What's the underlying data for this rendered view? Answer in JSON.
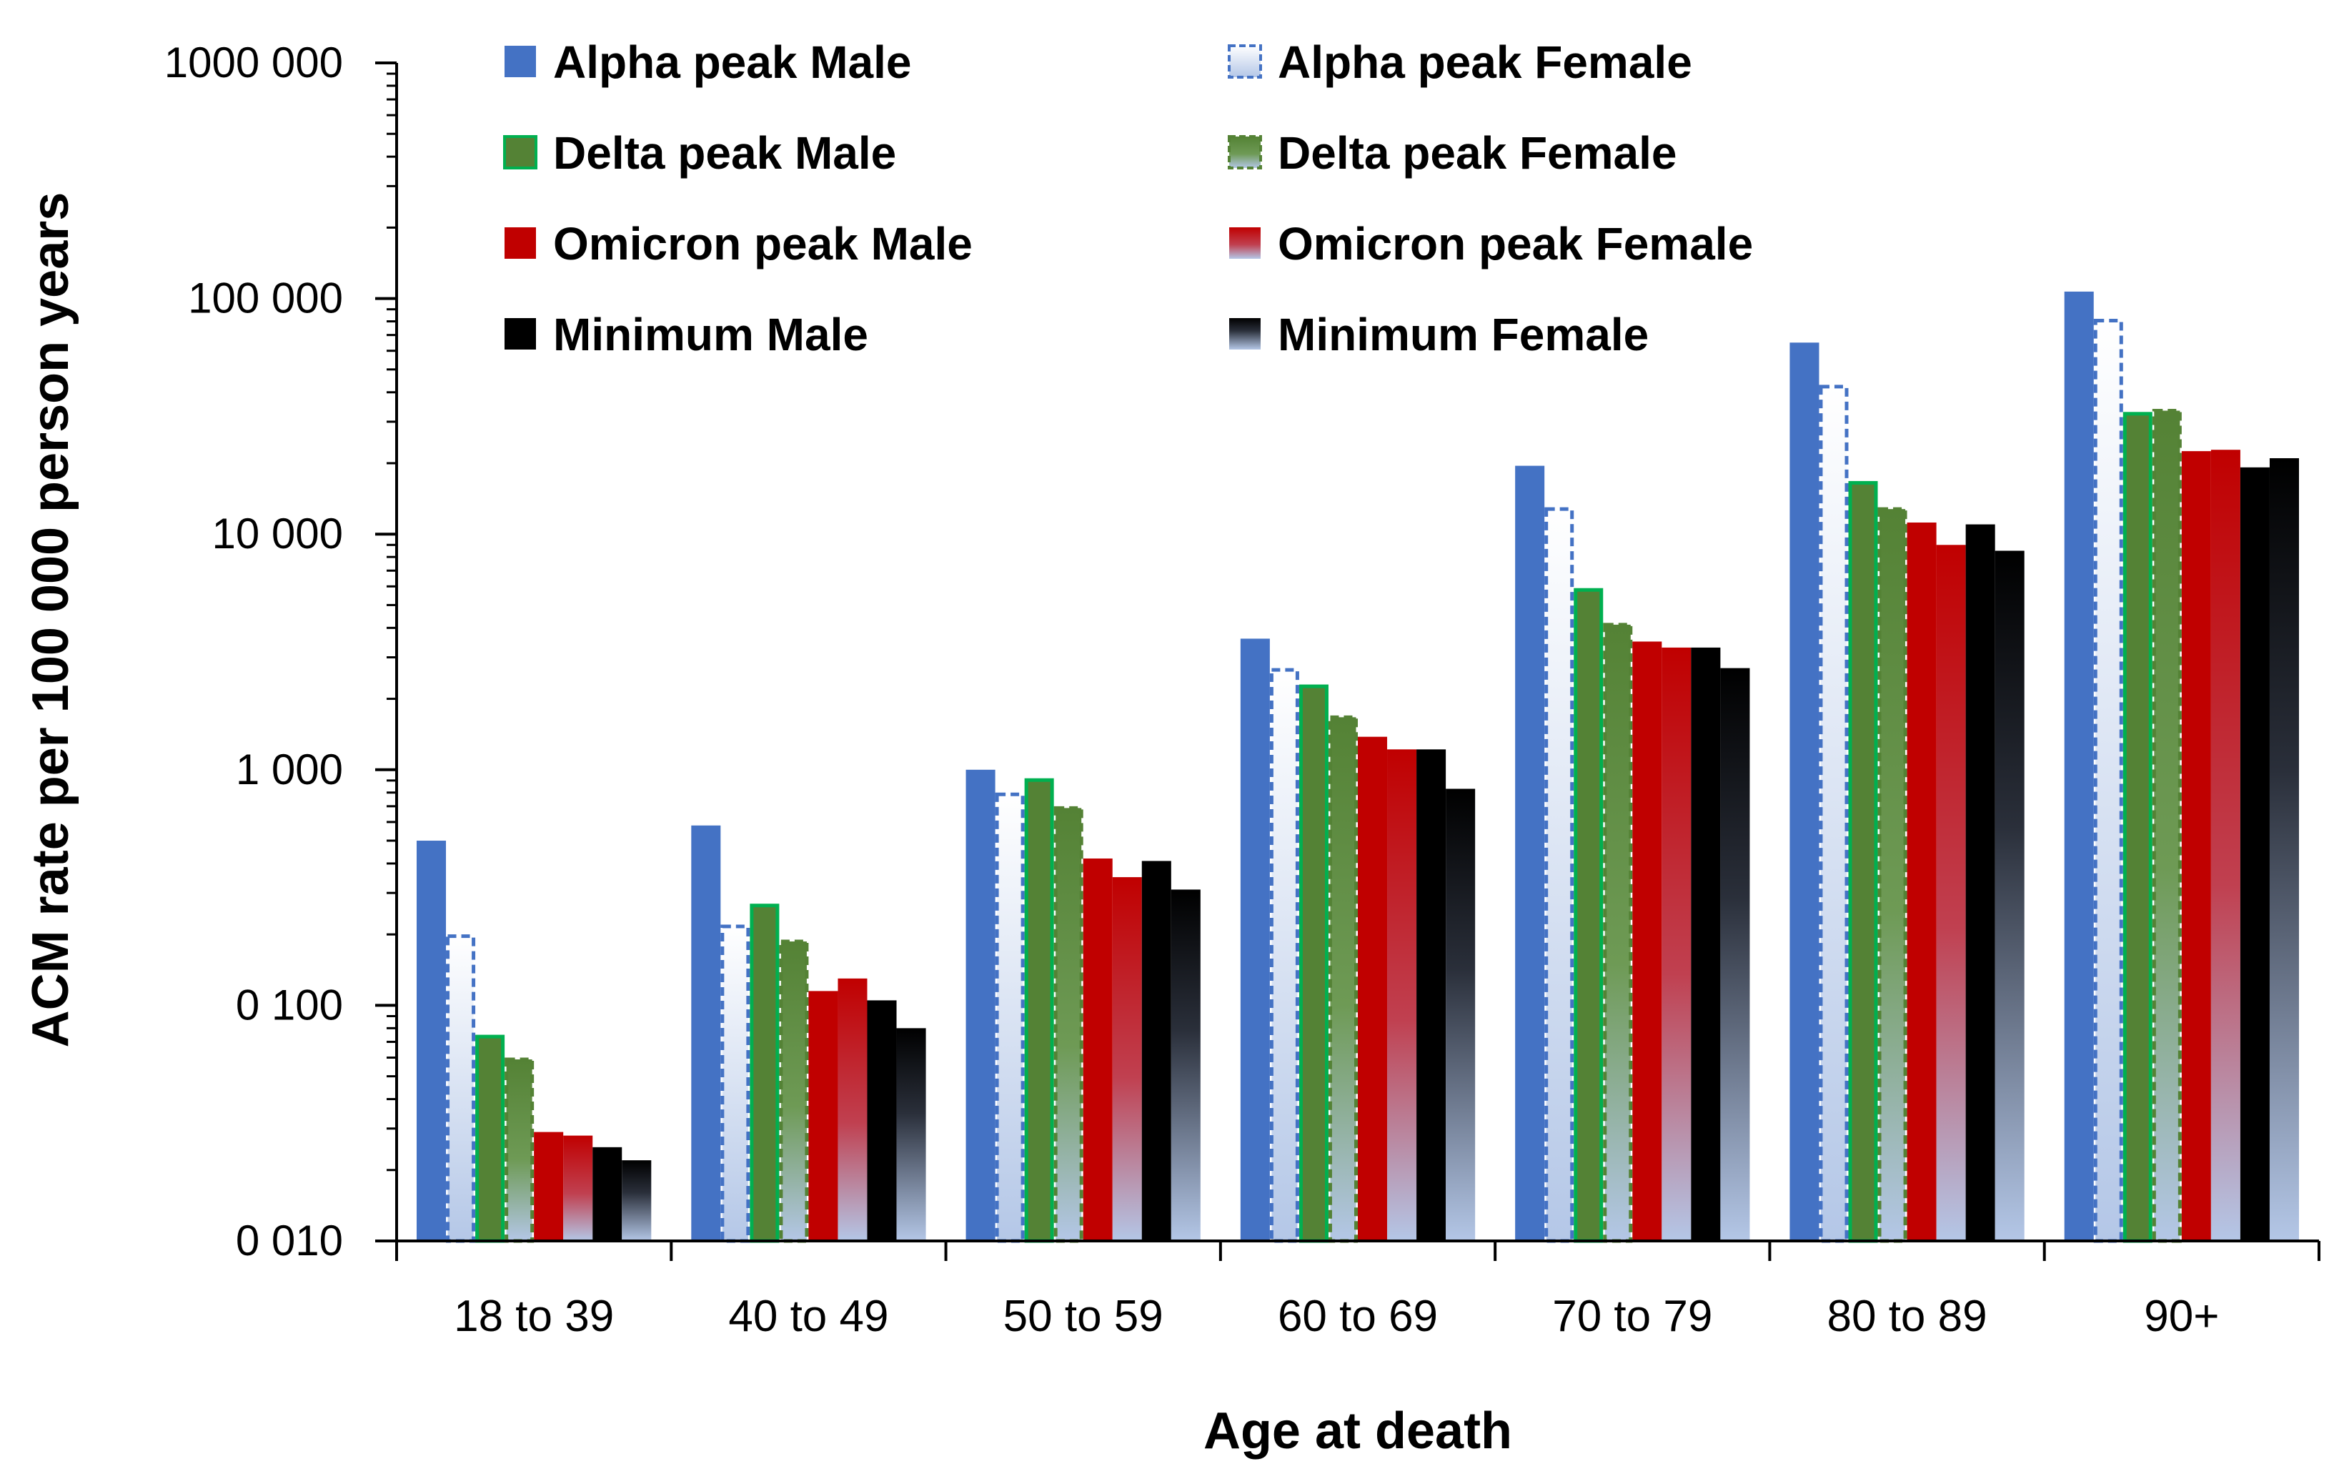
{
  "chart_data": {
    "type": "bar",
    "title": "",
    "xlabel": "Age at death",
    "ylabel": "ACM rate per 100 000 person years",
    "yscale": "log",
    "ylim": [
      0.01,
      1000
    ],
    "yticks": [
      0.01,
      0.1,
      1,
      10,
      100,
      1000
    ],
    "ytick_labels": [
      "0 010",
      "0 100",
      "1 000",
      "10 000",
      "100 000",
      "1000 000"
    ],
    "categories": [
      "18 to 39",
      "40 to 49",
      "50 to 59",
      "60 to 69",
      "70 to 79",
      "80 to 89",
      "90+"
    ],
    "legend_position": "top",
    "series": [
      {
        "name": "Alpha peak Male",
        "color": "#4472C4",
        "style": "solid",
        "values": [
          0.5,
          0.58,
          1.0,
          3.6,
          19.5,
          65,
          107
        ]
      },
      {
        "name": "Alpha peak Female",
        "color": "#4472C4",
        "style": "dashed-gradient",
        "values": [
          0.2,
          0.22,
          0.8,
          2.7,
          13,
          43,
          82
        ]
      },
      {
        "name": "Delta peak Male",
        "color": "#548235",
        "border": "#00B050",
        "style": "solid",
        "values": [
          0.075,
          0.27,
          0.92,
          2.3,
          5.9,
          16.8,
          33
        ]
      },
      {
        "name": "Delta peak Female",
        "color": "#548235",
        "border": "#548235",
        "style": "dashed-gradient",
        "values": [
          0.06,
          0.19,
          0.7,
          1.7,
          4.2,
          13,
          34
        ]
      },
      {
        "name": "Omicron peak Male",
        "color": "#C00000",
        "style": "solid",
        "values": [
          0.029,
          0.115,
          0.42,
          1.38,
          3.5,
          11.2,
          22.5
        ]
      },
      {
        "name": "Omicron peak Female",
        "color": "#C00000",
        "style": "gradient",
        "values": [
          0.028,
          0.13,
          0.35,
          1.22,
          3.3,
          9.0,
          22.8
        ]
      },
      {
        "name": "Minimum Male",
        "color": "#000000",
        "style": "solid",
        "values": [
          0.025,
          0.105,
          0.41,
          1.22,
          3.3,
          11.0,
          19.2
        ]
      },
      {
        "name": "Minimum Female",
        "color": "#000000",
        "style": "gradient",
        "values": [
          0.022,
          0.08,
          0.31,
          0.83,
          2.7,
          8.5,
          21
        ]
      }
    ]
  }
}
